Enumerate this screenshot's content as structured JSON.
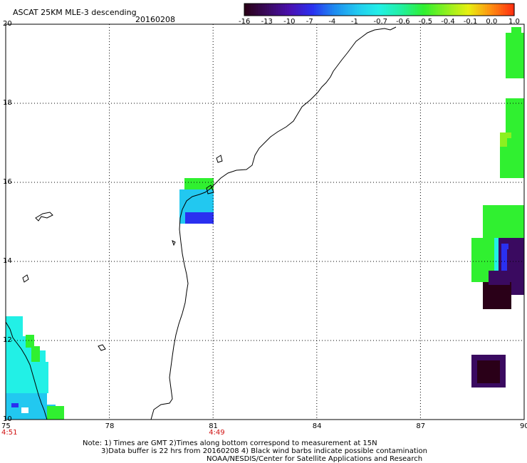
{
  "header": {
    "product": "ASCAT 25KM MLE-3 descending",
    "date": "20160208"
  },
  "colorbar": {
    "labels": [
      "-16",
      "-13",
      "-10",
      "-7",
      "-4",
      "-1",
      "-0.7",
      "-0.6",
      "-0.5",
      "-0.4",
      "-0.1",
      "0.0",
      "1.0"
    ],
    "colors": [
      "#2a0018",
      "#3a0a60",
      "#4a10b0",
      "#2a30f0",
      "#1e8cf0",
      "#22c8f0",
      "#22f0e6",
      "#22f0a0",
      "#30f030",
      "#8cf020",
      "#e8f010",
      "#ff9010",
      "#ff3010"
    ]
  },
  "map": {
    "lon_labels": [
      "75",
      "78",
      "81",
      "84",
      "87",
      "90"
    ],
    "lat_labels": [
      "20",
      "18",
      "16",
      "14",
      "12",
      "10"
    ],
    "lon_range": [
      75,
      90
    ],
    "lat_range": [
      10,
      20
    ],
    "grid": "dotted",
    "time_labels": [
      {
        "text": "4:51",
        "lon": 75
      },
      {
        "text": "4:49",
        "lon": 81
      }
    ],
    "timestamp_color": "#d01010"
  },
  "footer": {
    "line1": "Note: 1) Times are GMT 2)Times along bottom correspond to measurement at 15N",
    "line2": "3)Data buffer is 22 hrs from 20160208 4) Black wind barbs indicate possible contamination",
    "line3": "NOAA/NESDIS/Center for Satellite Applications and Research"
  }
}
